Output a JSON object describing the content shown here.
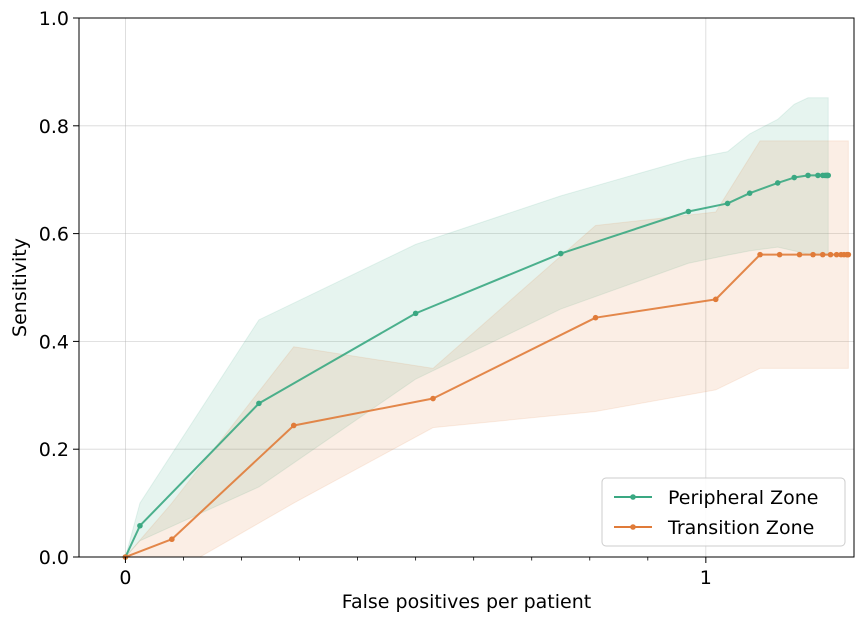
{
  "chart_data": {
    "type": "line",
    "title": "",
    "xlabel": "False positives per patient",
    "ylabel": "Sensitivity",
    "xscale": "symlog",
    "xlim": [
      -0.08,
      1.8
    ],
    "ylim": [
      0.0,
      1.0
    ],
    "xticks": [
      {
        "value": 0,
        "label": "0"
      },
      {
        "value": 1,
        "label": "1"
      }
    ],
    "yticks": [
      {
        "value": 0.0,
        "label": "0.0"
      },
      {
        "value": 0.2,
        "label": "0.2"
      },
      {
        "value": 0.4,
        "label": "0.4"
      },
      {
        "value": 0.6,
        "label": "0.6"
      },
      {
        "value": 0.8,
        "label": "0.8"
      },
      {
        "value": 1.0,
        "label": "1.0"
      }
    ],
    "grid": true,
    "legend_position": "bottom-right",
    "series": [
      {
        "name": "Peripheral Zone",
        "color": "#3aa882",
        "band_color": "#3aa882",
        "x": [
          0.0,
          0.025,
          0.23,
          0.5,
          0.75,
          0.97,
          1.09,
          1.19,
          1.33,
          1.42,
          1.5,
          1.56,
          1.59,
          1.605,
          1.615,
          1.62,
          1.625
        ],
        "y": [
          0.0,
          0.058,
          0.285,
          0.452,
          0.563,
          0.641,
          0.656,
          0.675,
          0.694,
          0.704,
          0.708,
          0.708,
          0.708,
          0.708,
          0.708,
          0.708,
          0.708
        ],
        "lower": [
          0.0,
          0.03,
          0.13,
          0.33,
          0.46,
          0.545,
          0.56,
          0.568,
          0.575,
          0.568,
          0.562,
          0.56,
          0.56,
          0.56,
          0.56,
          0.56,
          0.56
        ],
        "upper": [
          0.0,
          0.1,
          0.44,
          0.58,
          0.67,
          0.738,
          0.752,
          0.785,
          0.812,
          0.84,
          0.852,
          0.852,
          0.852,
          0.852,
          0.852,
          0.852,
          0.852
        ]
      },
      {
        "name": "Transition Zone",
        "color": "#e07b39",
        "band_color": "#e07b39",
        "x": [
          0.0,
          0.08,
          0.29,
          0.53,
          0.81,
          1.04,
          1.24,
          1.34,
          1.45,
          1.53,
          1.59,
          1.64,
          1.68,
          1.71,
          1.73,
          1.75,
          1.755,
          1.76
        ],
        "y": [
          0.0,
          0.033,
          0.244,
          0.294,
          0.444,
          0.478,
          0.561,
          0.561,
          0.561,
          0.561,
          0.561,
          0.561,
          0.561,
          0.561,
          0.561,
          0.561,
          0.561,
          0.561
        ],
        "lower": [
          0.0,
          -0.03,
          0.1,
          0.24,
          0.27,
          0.31,
          0.35,
          0.35,
          0.35,
          0.35,
          0.35,
          0.35,
          0.35,
          0.35,
          0.35,
          0.35,
          0.35,
          0.35
        ],
        "upper": [
          0.0,
          0.1,
          0.39,
          0.35,
          0.615,
          0.64,
          0.772,
          0.772,
          0.772,
          0.772,
          0.772,
          0.772,
          0.772,
          0.772,
          0.772,
          0.772,
          0.772,
          0.772
        ]
      }
    ]
  }
}
